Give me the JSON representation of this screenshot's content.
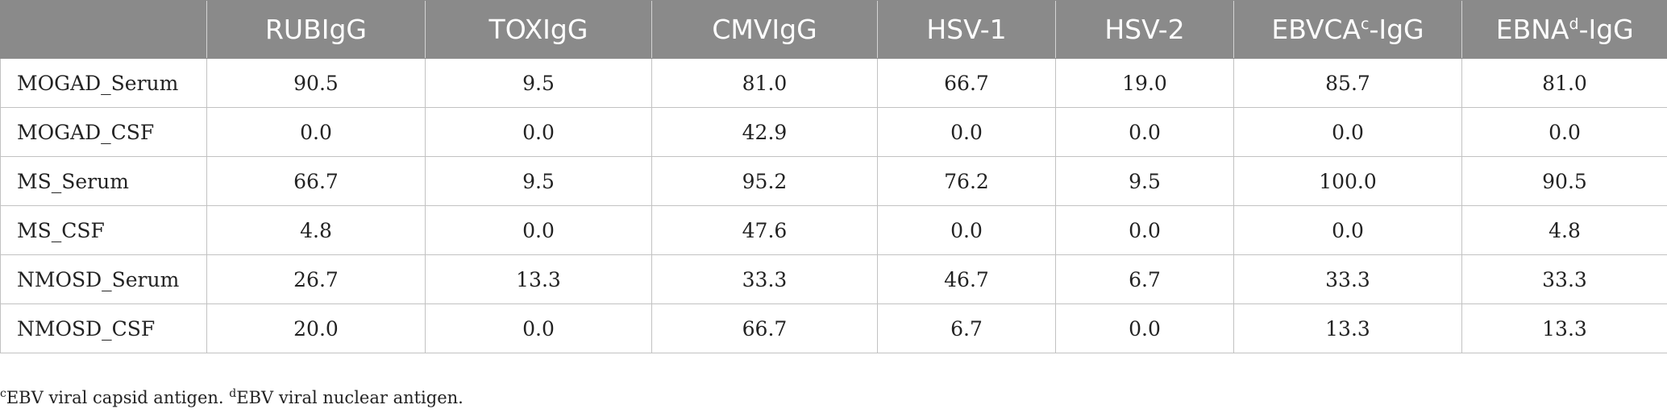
{
  "table": {
    "columns": [
      {
        "label": "",
        "sup": ""
      },
      {
        "label": "RUBIgG",
        "sup": ""
      },
      {
        "label": "TOXIgG",
        "sup": ""
      },
      {
        "label": "CMVIgG",
        "sup": ""
      },
      {
        "label": "HSV-1",
        "sup": ""
      },
      {
        "label": "HSV-2",
        "sup": ""
      },
      {
        "label": "EBVCA",
        "sup": "c",
        "suffix": "-IgG"
      },
      {
        "label": "EBNA",
        "sup": "d",
        "suffix": "-IgG"
      }
    ],
    "rows": [
      {
        "label": "MOGAD_Serum",
        "values": [
          "90.5",
          "9.5",
          "81.0",
          "66.7",
          "19.0",
          "85.7",
          "81.0"
        ]
      },
      {
        "label": "MOGAD_CSF",
        "values": [
          "0.0",
          "0.0",
          "42.9",
          "0.0",
          "0.0",
          "0.0",
          "0.0"
        ]
      },
      {
        "label": "MS_Serum",
        "values": [
          "66.7",
          "9.5",
          "95.2",
          "76.2",
          "9.5",
          "100.0",
          "90.5"
        ]
      },
      {
        "label": "MS_CSF",
        "values": [
          "4.8",
          "0.0",
          "47.6",
          "0.0",
          "0.0",
          "0.0",
          "4.8"
        ]
      },
      {
        "label": "NMOSD_Serum",
        "values": [
          "26.7",
          "13.3",
          "33.3",
          "46.7",
          "6.7",
          "33.3",
          "33.3"
        ]
      },
      {
        "label": "NMOSD_CSF",
        "values": [
          "20.0",
          "0.0",
          "66.7",
          "6.7",
          "0.0",
          "13.3",
          "13.3"
        ]
      }
    ]
  },
  "footnotes": [
    {
      "mark": "c",
      "text": "EBV viral capsid antigen."
    },
    {
      "mark": "d",
      "text": "EBV viral nuclear antigen."
    }
  ]
}
